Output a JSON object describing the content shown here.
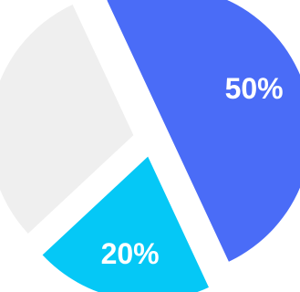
{
  "chart_data": {
    "type": "pie",
    "slices": [
      {
        "label": "50%",
        "value": 50,
        "color": "#4a6cf7",
        "show_label": true
      },
      {
        "label": "20%",
        "value": 20,
        "color": "#05c8f6",
        "show_label": true
      },
      {
        "label": "",
        "value": 30,
        "color": "#efefef",
        "show_label": false
      }
    ],
    "style": "exploded",
    "legend": "none"
  }
}
